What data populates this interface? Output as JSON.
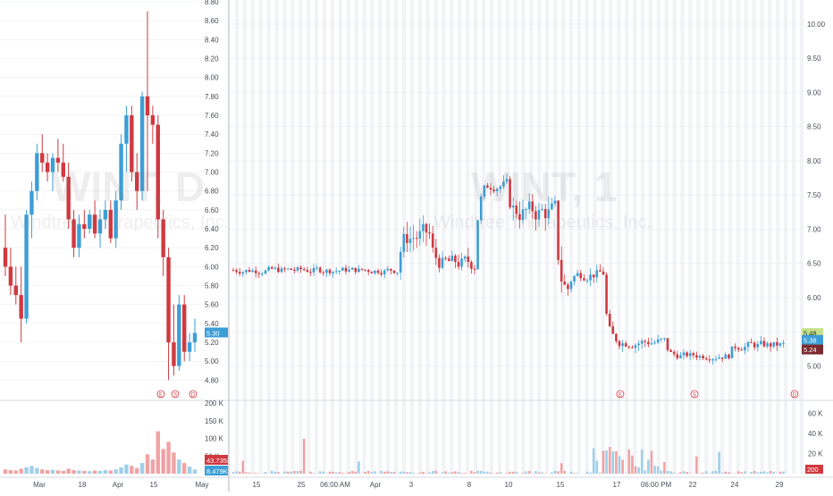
{
  "chart_data": [
    {
      "type": "candlestick",
      "title": "",
      "watermark": {
        "symbol": "WINT, D",
        "name": "Windtree Therapeutics, Inc."
      },
      "ylim": [
        4.7,
        8.8
      ],
      "y_ticks": [
        "8.80",
        "8.60",
        "8.40",
        "8.20",
        "8.00",
        "7.80",
        "7.60",
        "7.40",
        "7.20",
        "7.00",
        "6.80",
        "6.60",
        "6.40",
        "6.20",
        "6.00",
        "5.80",
        "5.60",
        "5.40",
        "5.20",
        "5.00",
        "4.80"
      ],
      "x_ticks": [
        "Mar",
        "18",
        "Apr",
        "15",
        "May"
      ],
      "last_price_label": "5.30",
      "event_markers": [
        "E",
        "S",
        "D"
      ],
      "candles": [
        [
          6.2,
          6.55,
          5.9,
          6.0
        ],
        [
          6.0,
          6.2,
          5.7,
          5.8
        ],
        [
          5.8,
          6.0,
          5.6,
          5.7
        ],
        [
          5.7,
          6.0,
          5.2,
          5.45
        ],
        [
          5.45,
          6.6,
          5.4,
          6.55
        ],
        [
          6.55,
          6.9,
          6.3,
          6.8
        ],
        [
          6.8,
          7.3,
          6.7,
          7.2
        ],
        [
          7.2,
          7.4,
          7.0,
          7.1
        ],
        [
          7.1,
          7.2,
          6.9,
          7.0
        ],
        [
          7.0,
          7.2,
          6.8,
          7.15
        ],
        [
          7.15,
          7.35,
          7.0,
          7.1
        ],
        [
          7.1,
          7.3,
          6.9,
          6.95
        ],
        [
          6.95,
          7.1,
          6.4,
          6.5
        ],
        [
          6.5,
          6.6,
          6.1,
          6.2
        ],
        [
          6.2,
          6.55,
          6.1,
          6.45
        ],
        [
          6.45,
          6.6,
          6.3,
          6.4
        ],
        [
          6.4,
          6.6,
          6.35,
          6.55
        ],
        [
          6.55,
          6.7,
          6.3,
          6.35
        ],
        [
          6.35,
          6.6,
          6.2,
          6.5
        ],
        [
          6.5,
          6.7,
          6.4,
          6.6
        ],
        [
          6.6,
          6.7,
          6.25,
          6.3
        ],
        [
          6.3,
          6.8,
          6.2,
          6.7
        ],
        [
          6.7,
          7.4,
          6.6,
          7.3
        ],
        [
          7.3,
          7.7,
          7.0,
          7.6
        ],
        [
          7.6,
          7.7,
          6.9,
          7.0
        ],
        [
          7.0,
          7.2,
          6.6,
          6.8
        ],
        [
          6.8,
          7.85,
          6.7,
          7.8
        ],
        [
          7.8,
          8.7,
          6.8,
          7.6
        ],
        [
          7.6,
          7.7,
          7.3,
          7.5
        ],
        [
          7.5,
          7.6,
          6.3,
          6.5
        ],
        [
          6.5,
          6.6,
          5.9,
          6.1
        ],
        [
          6.1,
          6.2,
          4.8,
          5.2
        ],
        [
          5.2,
          5.6,
          4.85,
          4.95
        ],
        [
          4.95,
          5.7,
          4.9,
          5.6
        ],
        [
          5.6,
          5.7,
          5.0,
          5.1
        ],
        [
          5.1,
          5.3,
          5.0,
          5.2
        ],
        [
          5.2,
          5.45,
          5.1,
          5.3
        ]
      ],
      "volume_axis": {
        "ticks": [
          "200 K",
          "150 K",
          "100 K",
          "50 K"
        ],
        "labels": [
          "43.735K",
          "8.479K"
        ]
      },
      "volumes": [
        12,
        10,
        9,
        14,
        18,
        22,
        16,
        12,
        10,
        11,
        9,
        8,
        14,
        10,
        9,
        8,
        7,
        9,
        8,
        10,
        9,
        12,
        18,
        26,
        22,
        16,
        30,
        55,
        40,
        120,
        70,
        90,
        60,
        40,
        30,
        20,
        12
      ]
    },
    {
      "type": "candlestick",
      "title": "",
      "watermark": {
        "symbol": "WINT, 1",
        "name": "Windtree Therapeutics, Inc."
      },
      "ylim": [
        4.6,
        10.3
      ],
      "y_ticks": [
        "10.00",
        "9.50",
        "9.00",
        "8.50",
        "8.00",
        "7.50",
        "7.00",
        "6.50",
        "6.00",
        "5.50",
        "5.00"
      ],
      "x_ticks": [
        "15",
        "25",
        "06:00 AM",
        "Apr",
        "3",
        "8",
        "10",
        "15",
        "17",
        "06:00 PM",
        "22",
        "24",
        "29"
      ],
      "price_labels": [
        "5.48",
        "5.38",
        "5.24"
      ],
      "event_markers": [
        "E",
        "S",
        "D"
      ],
      "segments": [
        {
          "x0": 0.0,
          "x1": 0.3,
          "base": 6.4,
          "noise": 0.08
        },
        {
          "x0": 0.3,
          "x1": 0.36,
          "base": 6.9,
          "noise": 0.25
        },
        {
          "x0": 0.36,
          "x1": 0.44,
          "base": 6.5,
          "noise": 0.18
        },
        {
          "x0": 0.44,
          "x1": 0.5,
          "base": 7.65,
          "noise": 0.12
        },
        {
          "x0": 0.5,
          "x1": 0.585,
          "base": 7.25,
          "noise": 0.25
        },
        {
          "x0": 0.585,
          "x1": 0.61,
          "base": 6.1,
          "noise": 0.25
        },
        {
          "x0": 0.61,
          "x1": 0.67,
          "base": 6.35,
          "noise": 0.12
        },
        {
          "x0": 0.67,
          "x1": 0.78,
          "base": 5.35,
          "noise": 0.12
        },
        {
          "x0": 0.78,
          "x1": 0.9,
          "base": 5.15,
          "noise": 0.08
        },
        {
          "x0": 0.9,
          "x1": 1.0,
          "base": 5.3,
          "noise": 0.1
        }
      ],
      "volume_axis": {
        "ticks": [
          "60 K",
          "40 K",
          "20 K"
        ],
        "labels": [
          "200"
        ]
      }
    }
  ]
}
